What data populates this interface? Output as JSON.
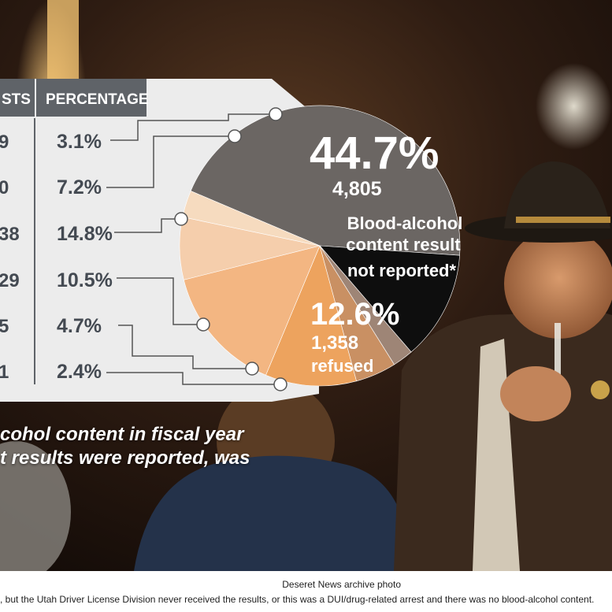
{
  "colors": {
    "not_reported": "#6b6663",
    "refused": "#0e0e0e",
    "panel": "#ececec",
    "header": "#5f6368",
    "slices": [
      "#f6dbbf",
      "#f5ceac",
      "#f3b682",
      "#eda35e",
      "#c99063",
      "#9e8576"
    ]
  },
  "table": {
    "col1_header_partial": "STS",
    "col2_header": "PERCENTAGE",
    "rows": [
      {
        "count_partial": "9",
        "percentage": "3.1%"
      },
      {
        "count_partial": "0",
        "percentage": "7.2%"
      },
      {
        "count_partial": "38",
        "percentage": "14.8%"
      },
      {
        "count_partial": "29",
        "percentage": "10.5%"
      },
      {
        "count_partial": "5",
        "percentage": "4.7%"
      },
      {
        "count_partial": "1",
        "percentage": "2.4%"
      }
    ]
  },
  "chart_data": {
    "type": "pie",
    "slices": [
      {
        "label": "Blood-alcohol content result not reported*",
        "percent": 44.7,
        "count": "4,805",
        "pct_label": "44.7%",
        "line1": "Blood-alcohol",
        "line2": "content result",
        "line3": "not reported*"
      },
      {
        "label": "refused",
        "percent": 12.6,
        "count": "1,358",
        "pct_label": "12.6%"
      },
      {
        "label": "",
        "percent": 2.4
      },
      {
        "label": "",
        "percent": 4.7
      },
      {
        "label": "",
        "percent": 10.5
      },
      {
        "label": "",
        "percent": 14.8
      },
      {
        "label": "",
        "percent": 7.2
      },
      {
        "label": "",
        "percent": 3.1
      }
    ]
  },
  "caption": {
    "line1": "cohol content in fiscal year",
    "line2": "t results were reported, was"
  },
  "credit": "Deseret News archive photo",
  "footnote": ", but the Utah Driver License Division never received the results, or this was a DUI/drug-related arrest and there was no blood-alcohol content."
}
